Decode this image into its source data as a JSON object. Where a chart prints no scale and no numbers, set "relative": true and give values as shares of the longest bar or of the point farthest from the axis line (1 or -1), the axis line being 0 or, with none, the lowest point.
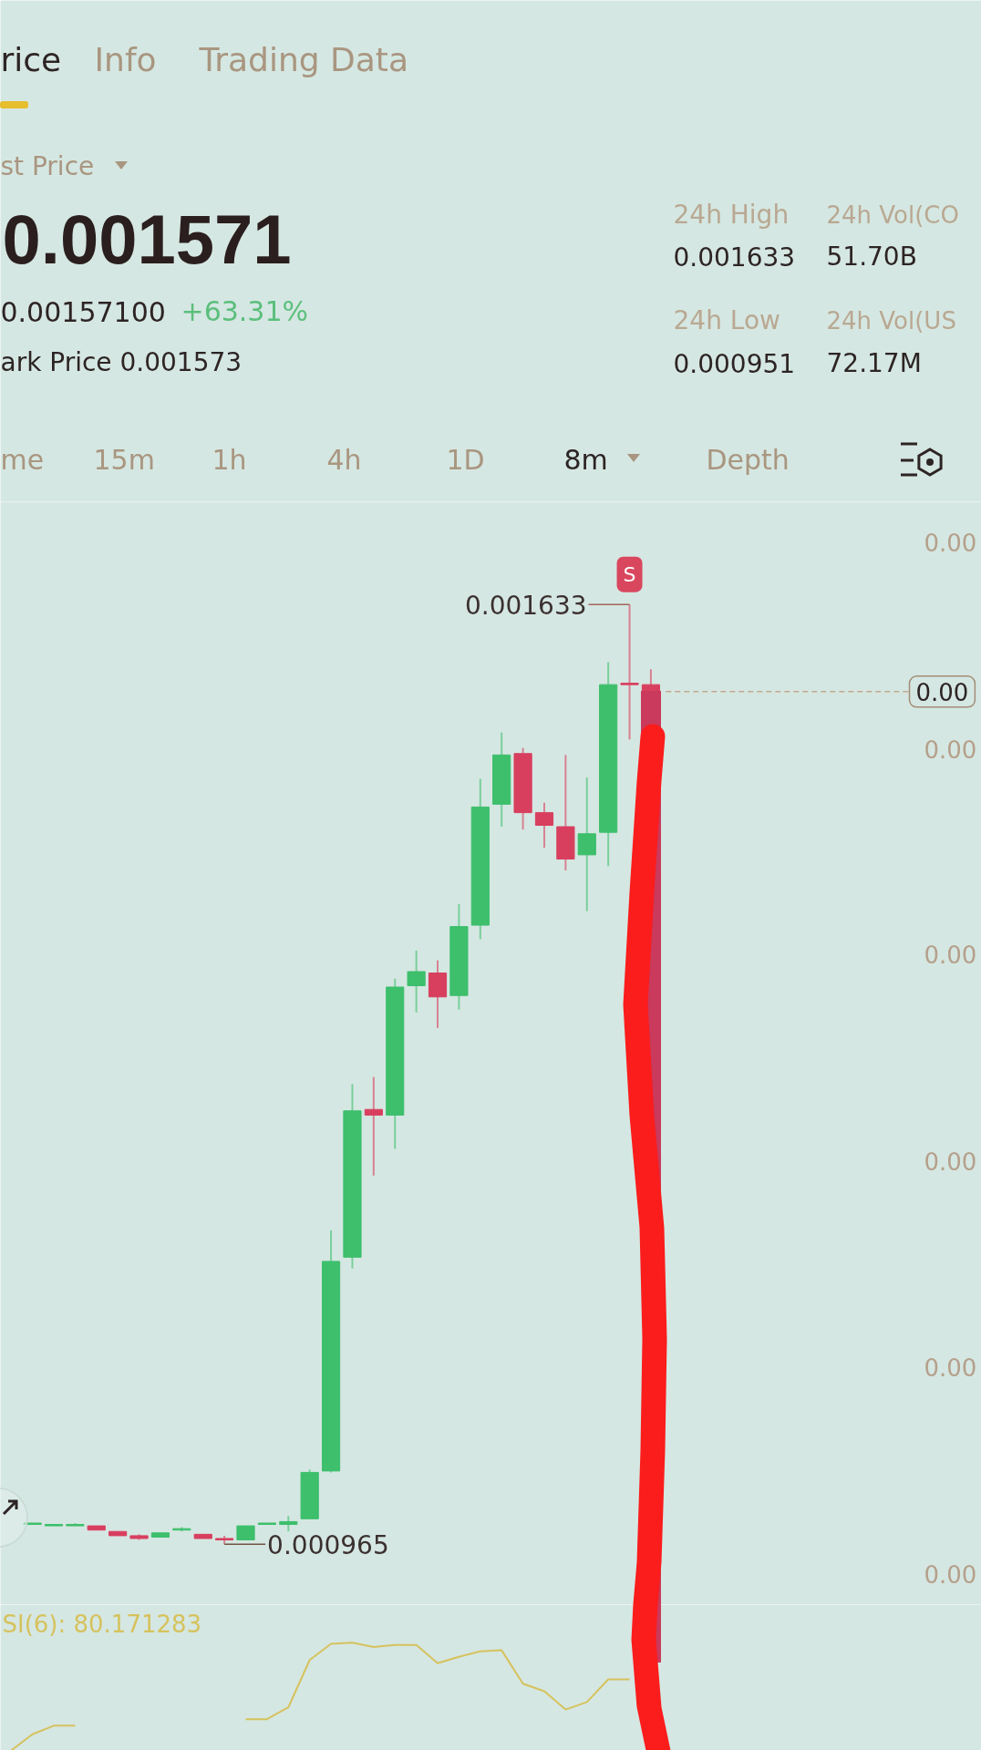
{
  "chart_data": [
    {
      "type": "other",
      "annotations": [
        "rice",
        "Info",
        "Trading Data",
        "st Price",
        "0.001571",
        "0.00157100",
        "+63.31%",
        "ark Price 0.001573",
        "24h High",
        "0.001633",
        "24h Vol(CO",
        "51.70B",
        "24h Low",
        "0.000951",
        "24h Vol(US",
        "72.17M",
        "me",
        "15m",
        "1h",
        "4h",
        "1D",
        "8m",
        "Depth"
      ]
    },
    {
      "type": "candlestick",
      "categories": [
        null,
        null,
        null,
        null,
        null,
        null,
        null,
        null,
        null,
        null,
        null,
        null,
        null,
        null,
        null,
        null,
        null,
        null,
        null,
        null,
        null,
        null,
        null,
        null,
        null,
        null,
        null,
        null,
        null,
        null,
        null,
        null,
        null,
        null,
        null,
        null,
        null,
        null,
        null,
        null,
        null,
        null,
        null,
        null,
        null,
        null
      ],
      "ohlc": [
        null,
        [
          0.000979,
          0.00098,
          0.000979,
          0.00098
        ],
        [
          0.000978,
          0.000979,
          0.000978,
          0.000979
        ],
        [
          0.000978,
          0.00098,
          0.000978,
          0.000979
        ],
        [
          0.000978,
          0.000978,
          0.000975,
          0.000975
        ],
        [
          0.000974,
          0.000974,
          0.000971,
          0.000971
        ],
        [
          0.000971,
          0.000972,
          0.000968,
          0.000969
        ],
        [
          0.00097,
          0.000973,
          0.00097,
          0.000973
        ],
        [
          0.000975,
          0.000977,
          0.000974,
          0.000976
        ],
        [
          0.000972,
          0.000972,
          0.000969,
          0.000969
        ],
        [
          0.000969,
          0.000971,
          0.000965,
          0.000968
        ],
        [
          0.000968,
          0.000978,
          0.000968,
          0.000978
        ],
        [
          0.000979,
          0.00098,
          0.000979,
          0.00098
        ],
        [
          0.000979,
          0.000985,
          0.000974,
          0.000981
        ],
        [
          0.000983,
          0.001018,
          0.000983,
          0.001016
        ],
        [
          0.001017,
          0.001188,
          0.001016,
          0.001166
        ],
        [
          0.001169,
          0.001292,
          0.001161,
          0.001273
        ],
        [
          0.001274,
          0.001297,
          0.001227,
          0.00127
        ],
        [
          0.00127,
          0.001367,
          0.001246,
          0.001361
        ],
        [
          0.001362,
          0.001387,
          0.001343,
          0.001372
        ],
        [
          0.001371,
          0.00138,
          0.001332,
          0.001354
        ],
        [
          0.001355,
          0.00142,
          0.001345,
          0.001404
        ],
        [
          0.001405,
          0.001509,
          0.001395,
          0.001489
        ],
        [
          0.001491,
          0.001542,
          0.001475,
          0.001526
        ],
        [
          0.001527,
          0.001531,
          0.001473,
          0.001485
        ],
        [
          0.001485,
          0.001492,
          0.00146,
          0.001476
        ],
        [
          0.001475,
          0.001526,
          0.001444,
          0.001452
        ],
        [
          0.001455,
          0.00151,
          0.001415,
          0.00147
        ],
        [
          0.001471,
          0.001592,
          0.001447,
          0.001576
        ],
        [
          0.001577,
          0.001633,
          0.001537,
          0.001576
        ],
        [
          0.001576,
          0.001587,
          0.001571,
          0.001571
        ],
        null,
        null,
        null,
        null,
        null,
        null,
        null,
        null,
        null,
        null,
        null,
        null,
        null,
        null,
        null
      ],
      "colors": [
        null,
        "#3dbf6c",
        "#3dbf6c",
        "#3dbf6c",
        "#d83f5f",
        "#d83f5f",
        "#d83f5f",
        "#3dbf6c",
        "#3dbf6c",
        "#d83f5f",
        "#d83f5f",
        "#3dbf6c",
        "#3dbf6c",
        "#3dbf6c",
        "#3dbf6c",
        "#3dbf6c",
        "#3dbf6c",
        "#d83f5f",
        "#3dbf6c",
        "#3dbf6c",
        "#d83f5f",
        "#3dbf6c",
        "#3dbf6c",
        "#3dbf6c",
        "#d83f5f",
        "#d83f5f",
        "#d83f5f",
        "#3dbf6c",
        "#3dbf6c",
        "#d83f5f",
        "#d83f5f",
        null,
        null,
        null,
        null,
        null,
        null,
        null,
        null,
        null,
        null,
        null,
        null,
        null,
        null,
        null
      ],
      "ylim": [
        0.000922,
        0.001706
      ],
      "yticks": [
        {
          "value": 0.000944,
          "label": "0.00"
        },
        {
          "value": 0.001091,
          "label": "0.00"
        },
        {
          "value": 0.001237,
          "label": "0.00"
        },
        {
          "value": 0.001384,
          "label": "0.00"
        },
        {
          "value": 0.00153,
          "label": "0.00"
        },
        {
          "value": 0.001677,
          "label": "0.00"
        }
      ],
      "tick_labels": "y",
      "ref_lines": [
        {
          "axis": "y",
          "value": 0.001571,
          "label": "0.00",
          "line_style": "dashed",
          "color": "#c2a98e"
        }
      ],
      "annotations": [
        "0.001633",
        "0.000965",
        "S"
      ]
    },
    {
      "type": "line",
      "categories": [
        null,
        null,
        null,
        null,
        null,
        null,
        null,
        null,
        null,
        null,
        null,
        null,
        null,
        null,
        null,
        null,
        null,
        null,
        null,
        null,
        null,
        null,
        null,
        null,
        null,
        null,
        null,
        null,
        null,
        null,
        null,
        null,
        null,
        null,
        null,
        null,
        null,
        null,
        null,
        null,
        null,
        null,
        null,
        null,
        null,
        null
      ],
      "relative": true,
      "tick_labels": false,
      "series": [
        {
          "name": "SI(6): 80.171283",
          "color": "#d6c25e",
          "values": [
            0,
            0.15,
            0.23,
            0.23,
            null,
            null,
            null,
            null,
            null,
            null,
            null,
            0.29,
            0.29,
            0.4,
            0.84,
            0.99,
            1,
            0.96,
            0.98,
            0.98,
            0.81,
            0.87,
            0.92,
            0.93,
            0.62,
            0.55,
            0.38,
            0.45,
            0.66,
            0.66,
            null,
            null,
            null,
            null,
            null,
            null,
            null,
            null,
            null,
            null,
            null,
            null,
            null,
            null,
            null,
            null
          ]
        }
      ]
    }
  ]
}
